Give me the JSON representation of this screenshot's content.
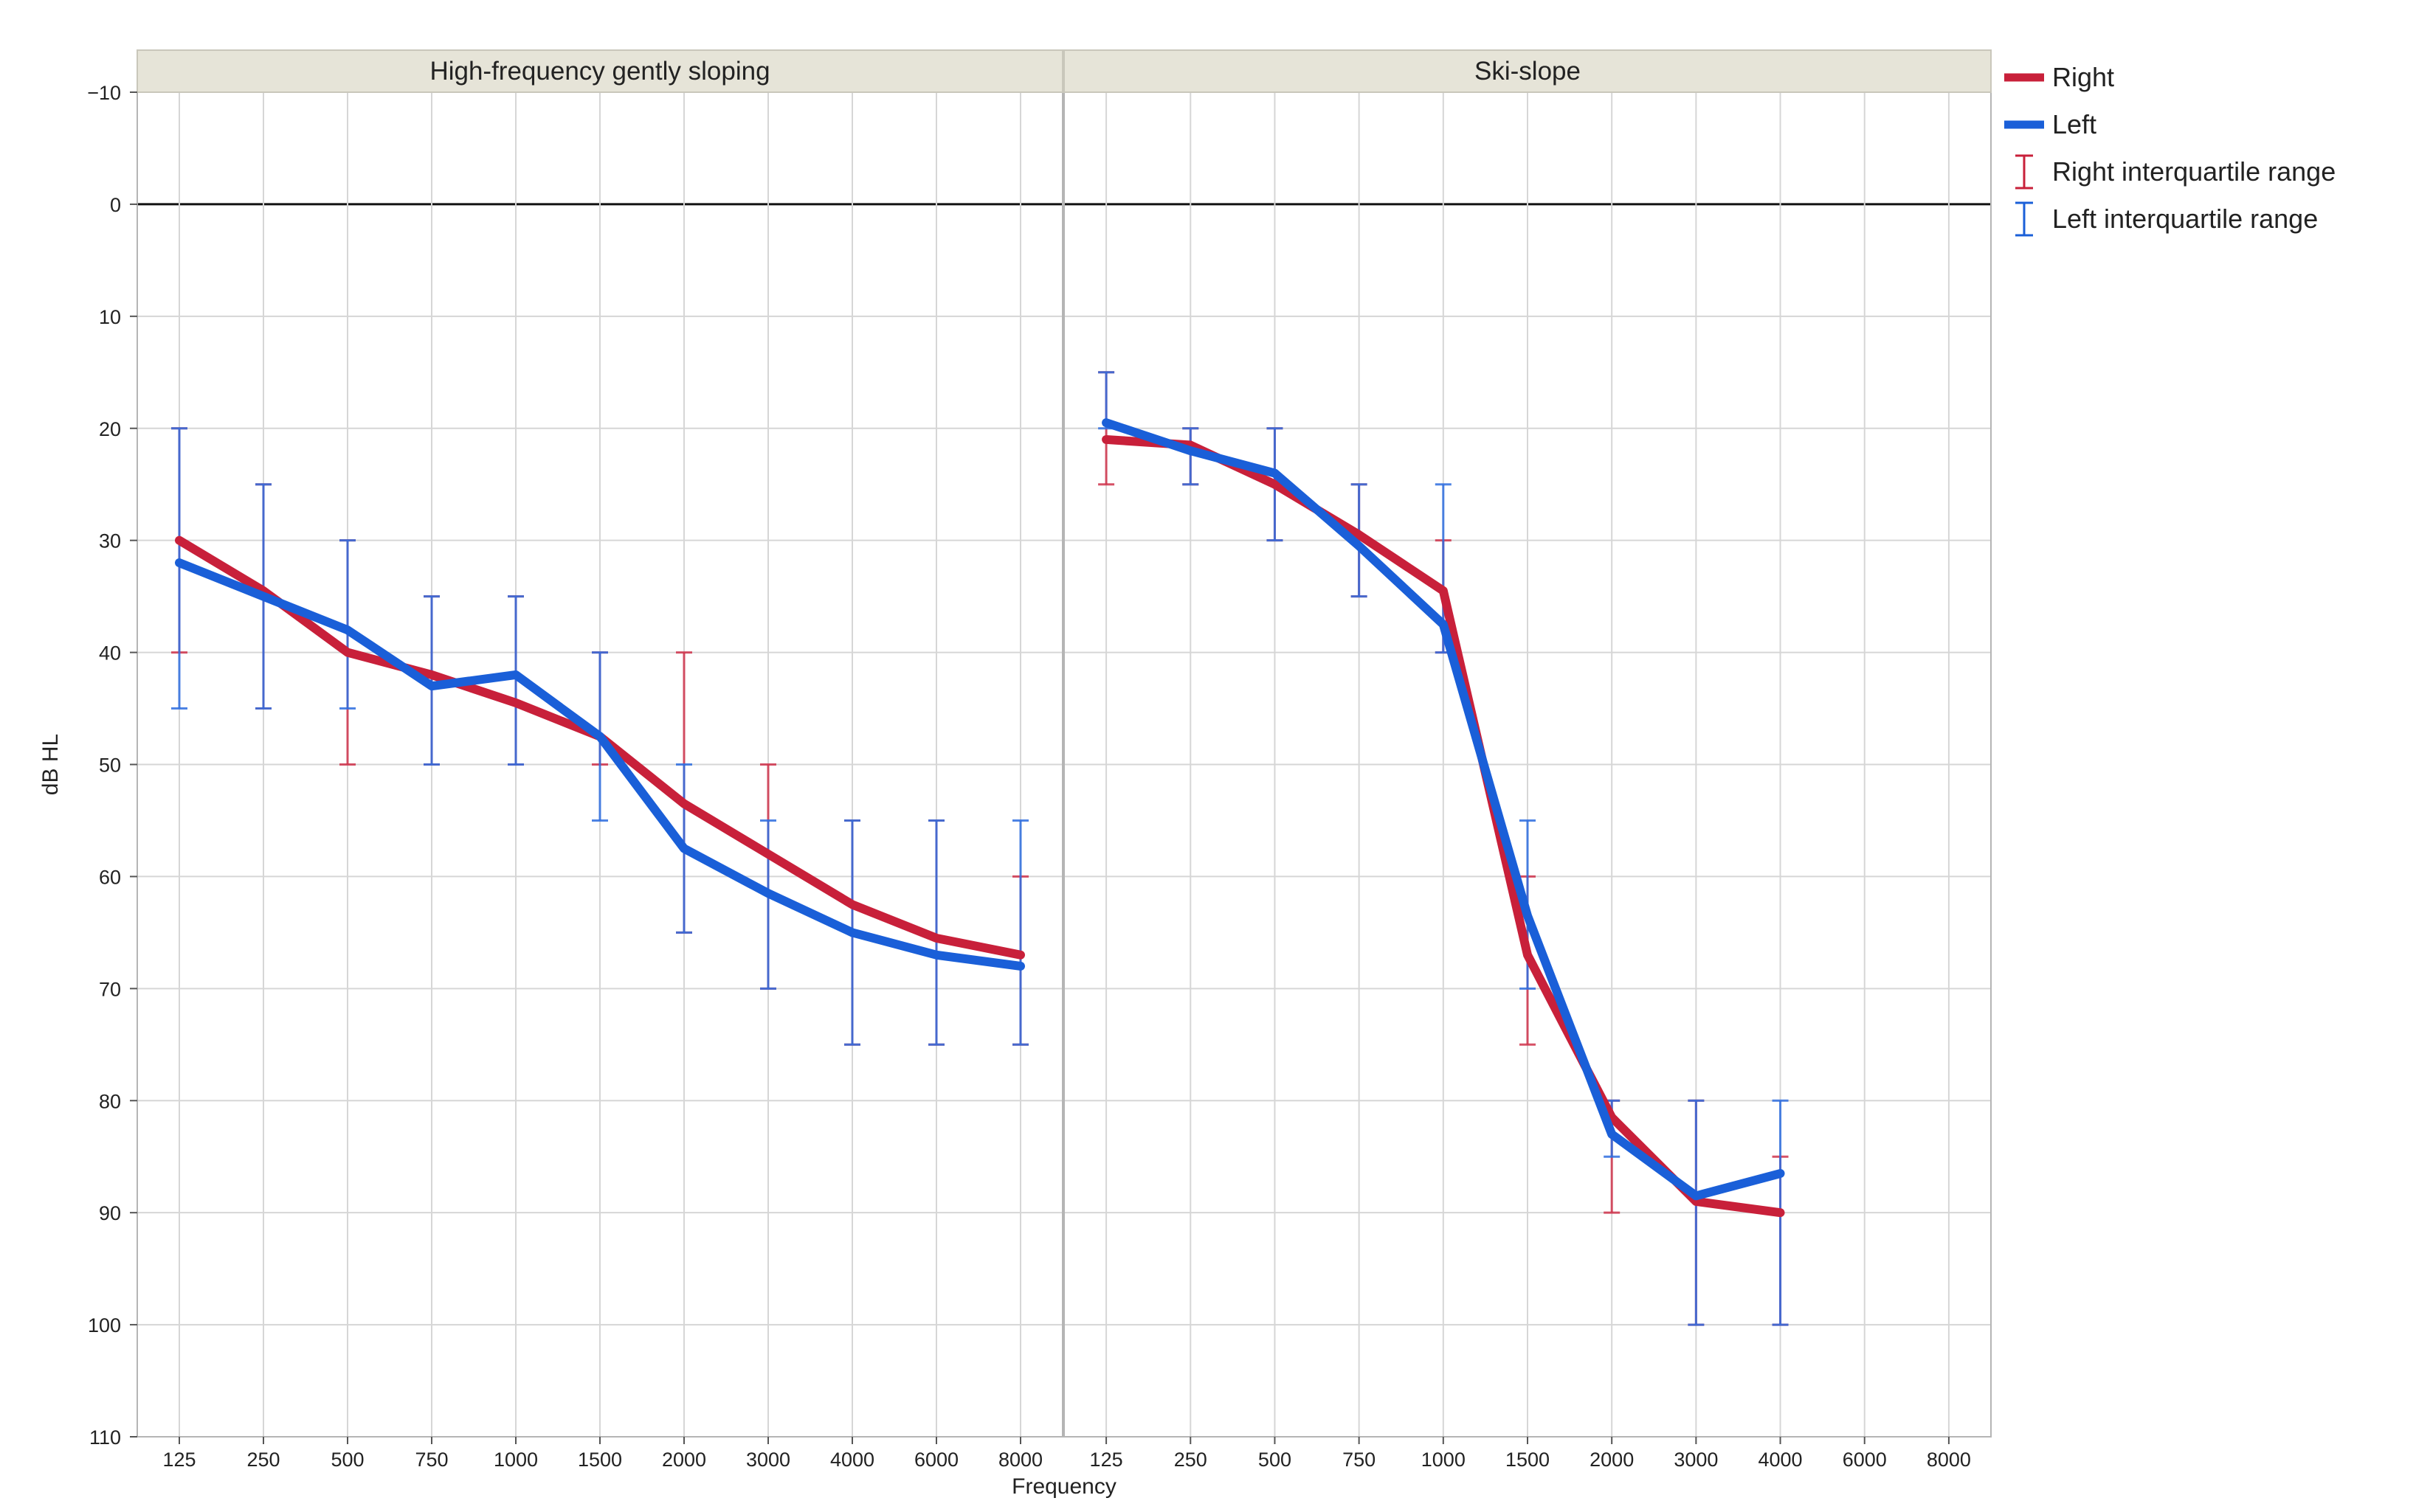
{
  "chart_data": {
    "type": "line",
    "xlabel": "Frequency",
    "ylabel": "dB HL",
    "ylim": [
      -10,
      110
    ],
    "y_inverted": true,
    "y_ticks": [
      -10,
      0,
      10,
      20,
      30,
      40,
      50,
      60,
      70,
      80,
      90,
      100,
      110
    ],
    "grid": true,
    "legend_position": "top-right",
    "colors": {
      "right": "#c8203a",
      "left": "#1a5fd8",
      "right_error": "#d0334c",
      "left_error": "#2f6ee0"
    },
    "legend": [
      {
        "key": "right",
        "label": "Right",
        "kind": "line"
      },
      {
        "key": "left",
        "label": "Left",
        "kind": "line"
      },
      {
        "key": "right_iqr",
        "label": "Right interquartile range",
        "kind": "errorbar"
      },
      {
        "key": "left_iqr",
        "label": "Left interquartile range",
        "kind": "errorbar"
      }
    ],
    "panels": [
      {
        "title": "High-frequency gently sloping",
        "categories": [
          "125",
          "250",
          "500",
          "750",
          "1000",
          "1500",
          "2000",
          "3000",
          "4000",
          "6000",
          "8000"
        ],
        "series": [
          {
            "name": "Right",
            "key": "right",
            "values": [
              30,
              34.5,
              40,
              42,
              44.5,
              47.5,
              53.5,
              58,
              62.5,
              65.5,
              67
            ],
            "iqr_low": [
              20,
              25,
              30,
              35,
              35,
              40,
              40,
              50,
              55,
              55,
              60
            ],
            "iqr_high": [
              40,
              45,
              50,
              50,
              50,
              50,
              65,
              70,
              75,
              75,
              75
            ]
          },
          {
            "name": "Left",
            "key": "left",
            "values": [
              32,
              35,
              38,
              43,
              42,
              47.5,
              57.5,
              61.5,
              65,
              67,
              68
            ],
            "iqr_low": [
              20,
              25,
              30,
              35,
              35,
              40,
              50,
              55,
              55,
              55,
              55
            ],
            "iqr_high": [
              45,
              45,
              45,
              50,
              50,
              55,
              65,
              70,
              75,
              75,
              75
            ]
          }
        ]
      },
      {
        "title": "Ski-slope",
        "categories": [
          "125",
          "250",
          "500",
          "750",
          "1000",
          "1500",
          "2000",
          "3000",
          "4000",
          "6000",
          "8000"
        ],
        "series": [
          {
            "name": "Right",
            "key": "right",
            "values": [
              21,
              21.5,
              25,
              29.5,
              34.5,
              67,
              81.5,
              89,
              90,
              null,
              null
            ],
            "iqr_low": [
              15,
              20,
              20,
              25,
              30,
              60,
              80,
              80,
              85,
              null,
              null
            ],
            "iqr_high": [
              25,
              25,
              30,
              35,
              40,
              75,
              90,
              100,
              100,
              null,
              null
            ]
          },
          {
            "name": "Left",
            "key": "left",
            "values": [
              19.5,
              22,
              24,
              30.5,
              37.5,
              63.5,
              83,
              88.5,
              86.5,
              null,
              null
            ],
            "iqr_low": [
              15,
              20,
              20,
              25,
              25,
              55,
              80,
              80,
              80,
              null,
              null
            ],
            "iqr_high": [
              20,
              25,
              30,
              35,
              40,
              70,
              85,
              100,
              100,
              null,
              null
            ]
          }
        ]
      }
    ]
  }
}
